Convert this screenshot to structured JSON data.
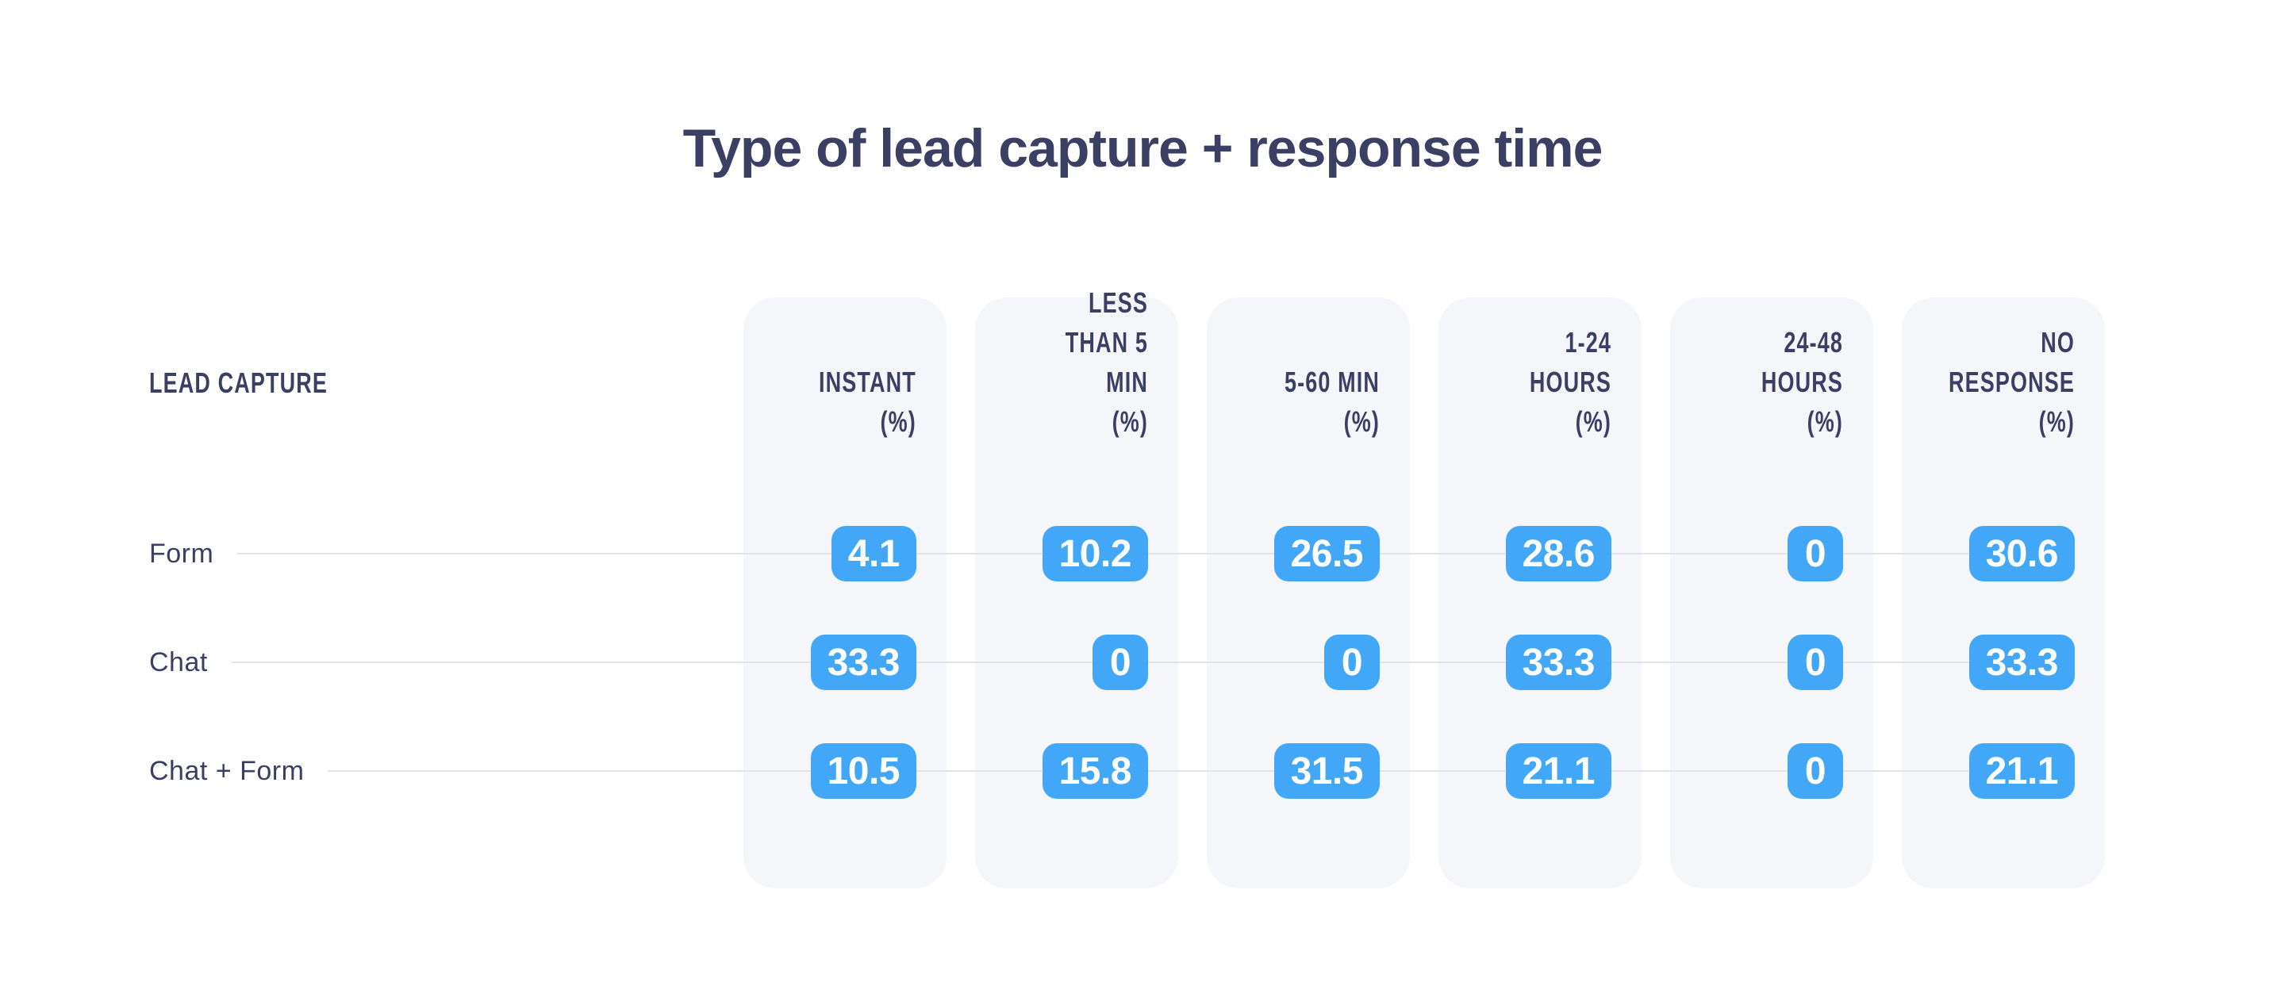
{
  "title": "Type of lead capture + response time",
  "row_header": "LEAD CAPTURE",
  "columns": [
    {
      "label": "INSTANT",
      "unit": "(%)"
    },
    {
      "label": "LESS\nTHAN 5 MIN",
      "unit": "(%)"
    },
    {
      "label": "5-60 MIN",
      "unit": "(%)"
    },
    {
      "label": "1-24 HOURS",
      "unit": "(%)"
    },
    {
      "label": "24-48 HOURS",
      "unit": "(%)"
    },
    {
      "label": "NO RESPONSE",
      "unit": "(%)"
    }
  ],
  "rows": [
    {
      "label": "Form",
      "values": [
        "4.1",
        "10.2",
        "26.5",
        "28.6",
        "0",
        "30.6"
      ]
    },
    {
      "label": "Chat",
      "values": [
        "33.3",
        "0",
        "0",
        "33.3",
        "0",
        "33.3"
      ]
    },
    {
      "label": "Chat + Form",
      "values": [
        "10.5",
        "15.8",
        "31.5",
        "21.1",
        "0",
        "21.1"
      ]
    }
  ],
  "colors": {
    "accent_blue": "#42A7F6",
    "text_navy": "#3A3F63",
    "card_background": "#F5F6FA",
    "leader_line": "#E3E4EB",
    "pill_text": "#FFFFFF"
  },
  "chart_data": {
    "type": "table",
    "title": "Type of lead capture + response time",
    "row_label_header": "LEAD CAPTURE",
    "columns": [
      "Instant (%)",
      "Less than 5 min (%)",
      "5-60 min (%)",
      "1-24 hours (%)",
      "24-48 hours (%)",
      "No response (%)"
    ],
    "rows": [
      {
        "name": "Form",
        "values": [
          4.1,
          10.2,
          26.5,
          28.6,
          0,
          30.6
        ]
      },
      {
        "name": "Chat",
        "values": [
          33.3,
          0,
          0,
          33.3,
          0,
          33.3
        ]
      },
      {
        "name": "Chat + Form",
        "values": [
          10.5,
          15.8,
          31.5,
          21.1,
          0,
          21.1
        ]
      }
    ],
    "value_unit": "percent",
    "legend_position": "none",
    "grid": "row-leader-lines"
  }
}
